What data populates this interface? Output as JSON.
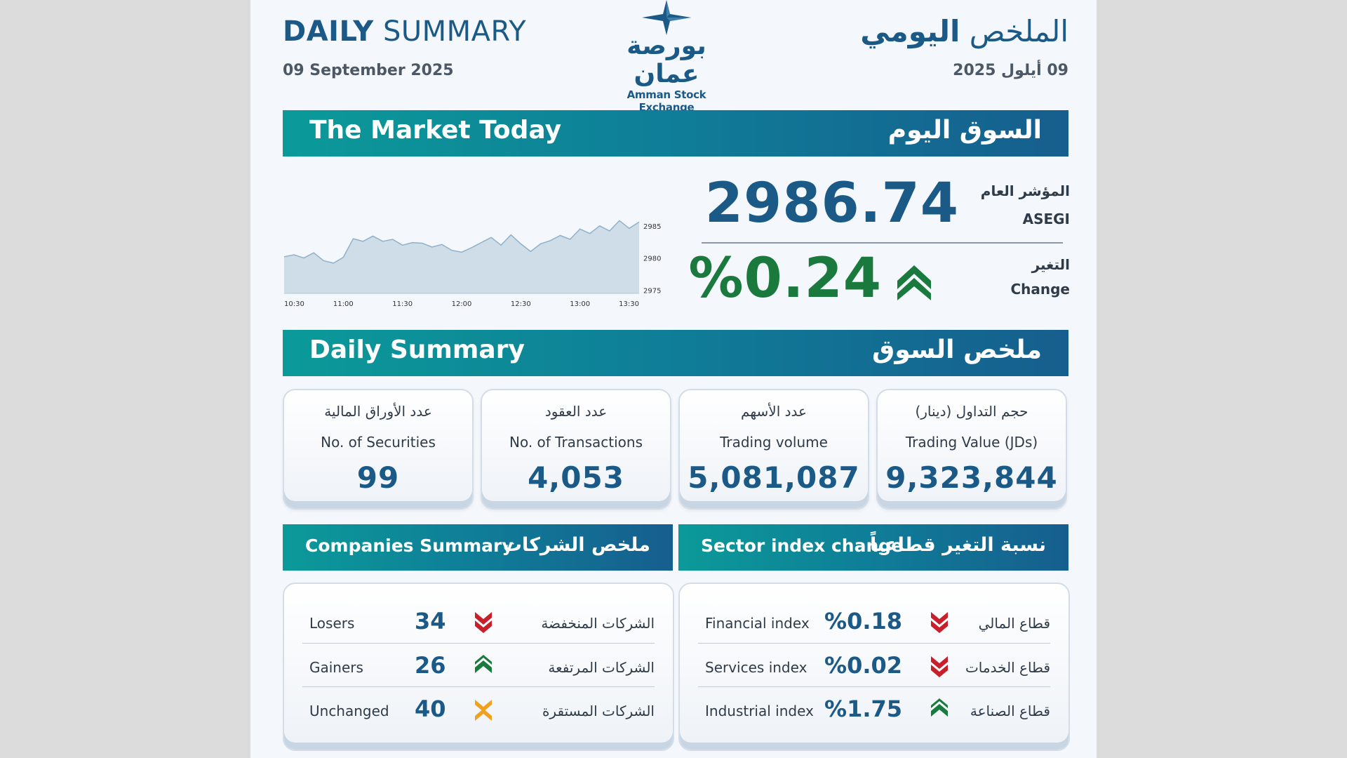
{
  "header": {
    "title_en_bold": "DAILY",
    "title_en_rest": " SUMMARY",
    "date_en": "09 September 2025",
    "title_ar_rest": "الملخص ",
    "title_ar_bold": "اليومي",
    "date_ar": "09 أيلول 2025",
    "logo_ar": "بورصة عمان",
    "logo_en": "Amman Stock Exchange"
  },
  "market_today": {
    "title_en": "The Market Today",
    "title_ar": "السوق اليوم",
    "index_label_ar": "المؤشر العام",
    "index_label_en": "ASEGI",
    "index_value": "2986.74",
    "change_label_ar": "التغير",
    "change_label_en": "Change",
    "change_value": "%0.24",
    "change_direction": "up",
    "up_color": "#1a7a3e"
  },
  "chart_data": {
    "type": "area",
    "x_ticks": [
      "10:30",
      "11:00",
      "11:30",
      "12:00",
      "12:30",
      "13:00",
      "13:30"
    ],
    "y_ticks": [
      2975,
      2980,
      2985
    ],
    "ylim": [
      2974.5,
      2986.5
    ],
    "xlim": [
      0,
      180
    ],
    "x": [
      0,
      5,
      10,
      15,
      20,
      25,
      30,
      35,
      40,
      45,
      50,
      55,
      60,
      65,
      70,
      75,
      80,
      85,
      90,
      95,
      100,
      105,
      110,
      115,
      120,
      125,
      130,
      135,
      140,
      145,
      150,
      155,
      160,
      165,
      170,
      175,
      180
    ],
    "values": [
      2980.2,
      2980.5,
      2980.0,
      2980.8,
      2979.6,
      2979.2,
      2980.1,
      2983.0,
      2982.6,
      2983.4,
      2982.6,
      2982.9,
      2982.0,
      2982.4,
      2982.3,
      2981.7,
      2982.1,
      2981.2,
      2980.9,
      2981.6,
      2982.4,
      2983.2,
      2982.0,
      2983.6,
      2982.2,
      2981.0,
      2982.2,
      2982.7,
      2983.5,
      2982.9,
      2984.5,
      2983.8,
      2985.0,
      2984.2,
      2985.8,
      2984.6,
      2985.6
    ],
    "line_color": "#8fb1cc",
    "fill_color": "#cfdde9"
  },
  "daily_summary": {
    "title_en": "Daily Summary",
    "title_ar": "ملخص السوق",
    "cards": [
      {
        "ar": "عدد الأوراق المالية",
        "en": "No. of Securities",
        "value": "99"
      },
      {
        "ar": "عدد العقود",
        "en": "No. of Transactions",
        "value": "4,053"
      },
      {
        "ar": "عدد الأسهم",
        "en": "Trading volume",
        "value": "5,081,087"
      },
      {
        "ar": "حجم التداول (دينار)",
        "en": "Trading Value (JDs)",
        "value": "9,323,844"
      }
    ]
  },
  "companies": {
    "title_en": "Companies Summary",
    "title_ar": "ملخص الشركات",
    "rows": [
      {
        "en": "Losers",
        "value": "34",
        "ar": "الشركات المنخفضة",
        "direction": "down"
      },
      {
        "en": "Gainers",
        "value": "26",
        "ar": "الشركات المرتفعة",
        "direction": "up"
      },
      {
        "en": "Unchanged",
        "value": "40",
        "ar": "الشركات المستقرة",
        "direction": "flat"
      }
    ]
  },
  "sectors": {
    "title_en": "Sector index change",
    "title_ar": "نسبة التغير قطاعياً",
    "rows": [
      {
        "en": "Financial index",
        "value": "%0.18",
        "ar": "قطاع المالي",
        "direction": "down"
      },
      {
        "en": "Services index",
        "value": "%0.02",
        "ar": "قطاع الخدمات",
        "direction": "down"
      },
      {
        "en": "Industrial index",
        "value": "%1.75",
        "ar": "قطاع الصناعة",
        "direction": "up"
      }
    ]
  },
  "colors": {
    "down": "#c8202b",
    "up": "#1a7a3e",
    "flat": "#f0a11e",
    "brand": "#1b5a86"
  }
}
